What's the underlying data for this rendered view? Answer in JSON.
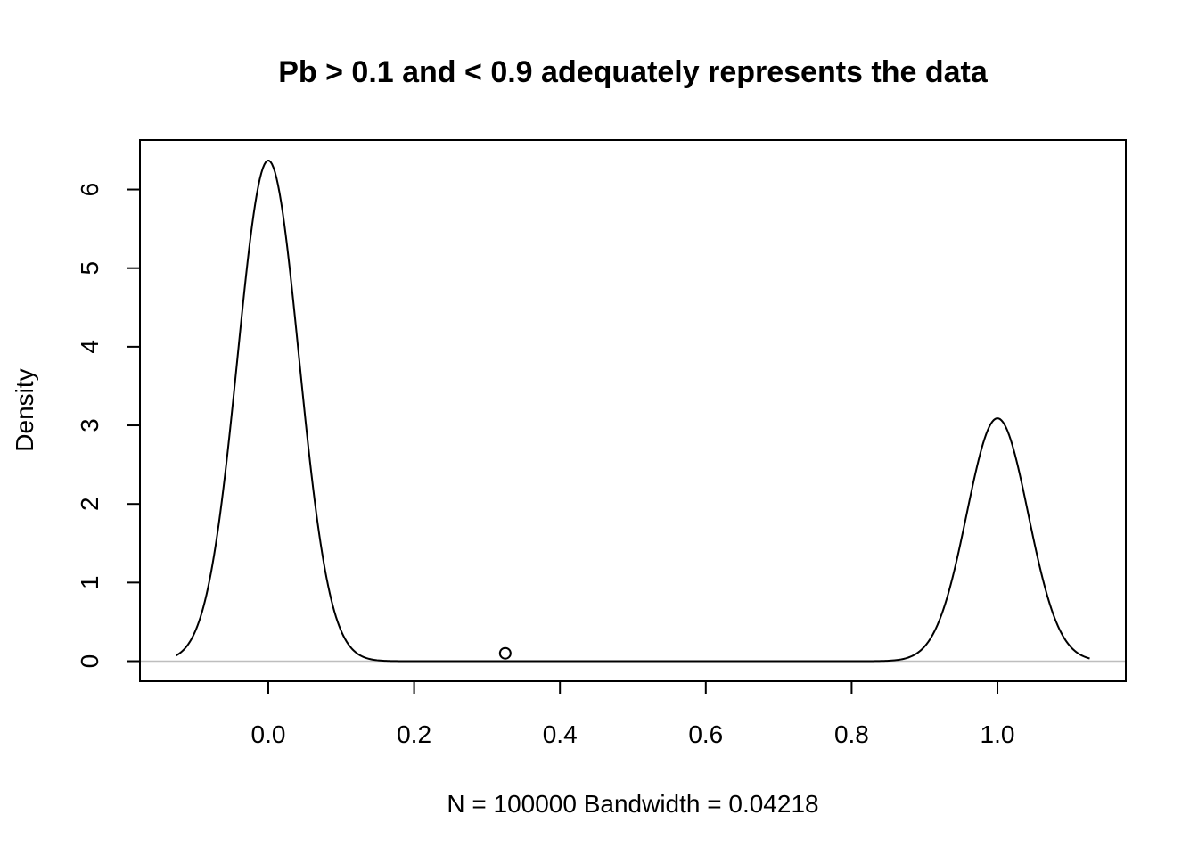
{
  "chart_data": {
    "type": "line",
    "title": "Pb > 0.1 and < 0.9 adequately represents the data",
    "xlabel": "N = 100000   Bandwidth = 0.04218",
    "ylabel": "Density",
    "xlim": [
      -0.176,
      1.176
    ],
    "ylim": [
      -0.255,
      6.63
    ],
    "x_ticks": [
      0.0,
      0.2,
      0.4,
      0.6,
      0.8,
      1.0
    ],
    "x_tick_labels": [
      "0.0",
      "0.2",
      "0.4",
      "0.6",
      "0.8",
      "1.0"
    ],
    "y_ticks": [
      0,
      1,
      2,
      3,
      4,
      5,
      6
    ],
    "y_tick_labels": [
      "0",
      "1",
      "2",
      "3",
      "4",
      "5",
      "6"
    ],
    "grid": false,
    "zero_line": true,
    "series": [
      {
        "kind": "density",
        "x_range": [
          -0.1265,
          1.1265
        ],
        "components": [
          {
            "center": 0.0,
            "peak": 6.37,
            "sd": 0.04218
          },
          {
            "center": 1.0,
            "peak": 3.09,
            "sd": 0.04218
          }
        ]
      }
    ],
    "points": [
      {
        "x": 0.325,
        "y": 0.1,
        "shape": "open-circle"
      }
    ],
    "colors": {
      "line": "#000000",
      "zero_line": "#bebebe",
      "background": "#ffffff"
    }
  }
}
